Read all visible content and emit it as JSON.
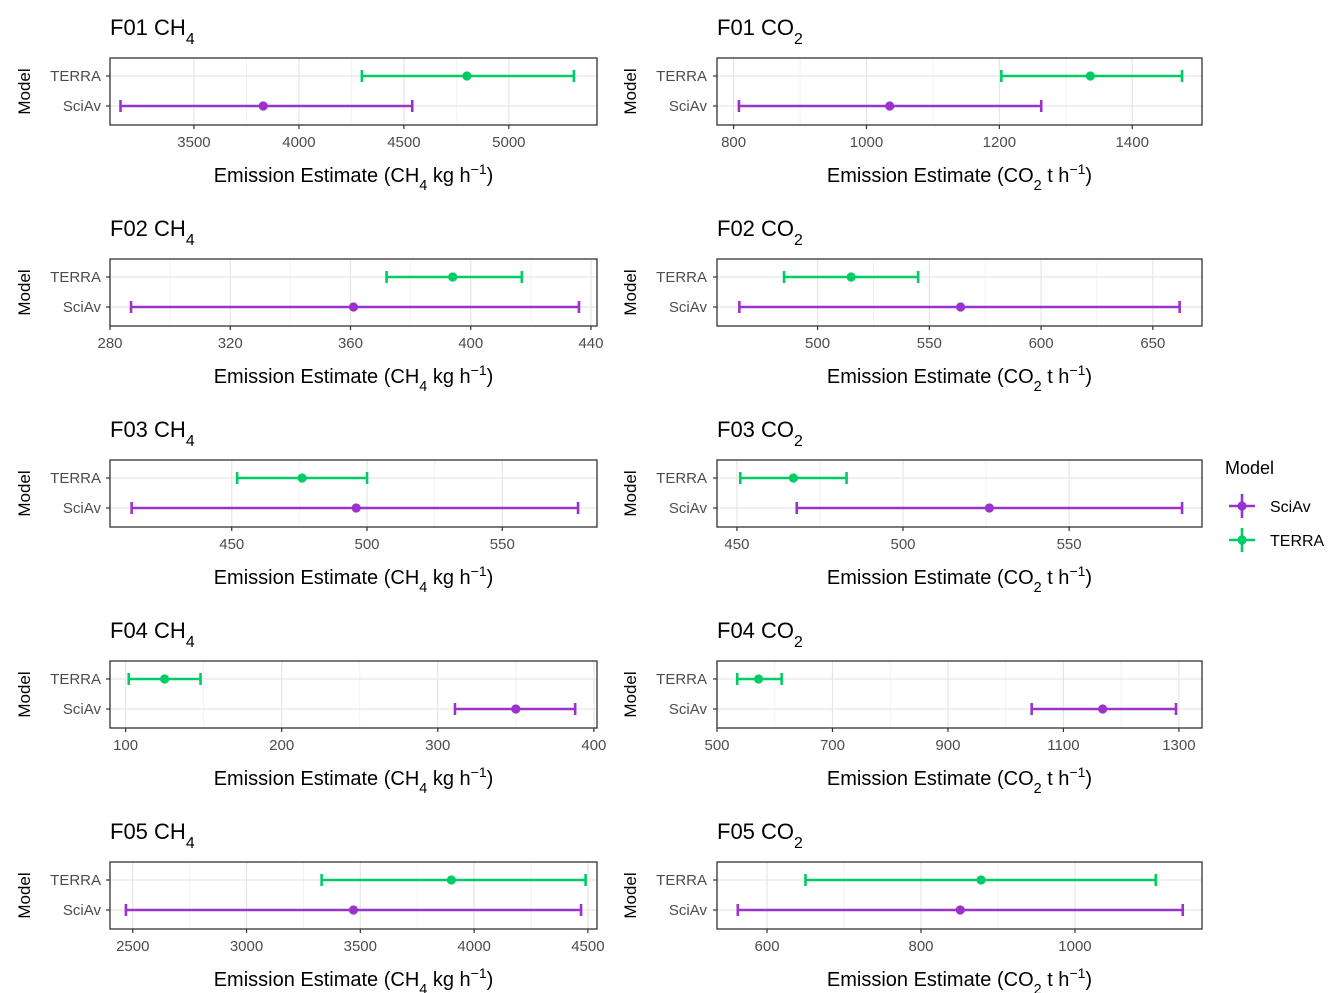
{
  "legend": {
    "title": "Model",
    "items": [
      {
        "label": "SciAv",
        "color": "#9933CC"
      },
      {
        "label": "TERRA",
        "color": "#00CC66"
      }
    ]
  },
  "chart_data": [
    {
      "type": "errorbar",
      "title": "F01 CH4",
      "gas": "CH4",
      "xlabel_unit": "kg h",
      "ylabel": "Model",
      "categories": [
        "TERRA",
        "SciAv"
      ],
      "xlim": [
        3100,
        5420
      ],
      "xticks": [
        3500,
        4000,
        4500,
        5000
      ],
      "series": [
        {
          "model": "TERRA",
          "estimate": 4800,
          "low": 4300,
          "high": 5310
        },
        {
          "model": "SciAv",
          "estimate": 3830,
          "low": 3150,
          "high": 4540
        }
      ]
    },
    {
      "type": "errorbar",
      "title": "F01 CO2",
      "gas": "CO2",
      "xlabel_unit": "t h",
      "ylabel": "Model",
      "categories": [
        "TERRA",
        "SciAv"
      ],
      "xlim": [
        775,
        1505
      ],
      "xticks": [
        800,
        1000,
        1200,
        1400
      ],
      "series": [
        {
          "model": "TERRA",
          "estimate": 1337,
          "low": 1203,
          "high": 1475
        },
        {
          "model": "SciAv",
          "estimate": 1035,
          "low": 808,
          "high": 1263
        }
      ]
    },
    {
      "type": "errorbar",
      "title": "F02 CH4",
      "gas": "CH4",
      "xlabel_unit": "kg h",
      "ylabel": "Model",
      "categories": [
        "TERRA",
        "SciAv"
      ],
      "xlim": [
        280,
        442
      ],
      "xticks": [
        280,
        320,
        360,
        400,
        440
      ],
      "series": [
        {
          "model": "TERRA",
          "estimate": 394,
          "low": 372,
          "high": 417
        },
        {
          "model": "SciAv",
          "estimate": 361,
          "low": 287,
          "high": 436
        }
      ]
    },
    {
      "type": "errorbar",
      "title": "F02 CO2",
      "gas": "CO2",
      "xlabel_unit": "t h",
      "ylabel": "Model",
      "categories": [
        "TERRA",
        "SciAv"
      ],
      "xlim": [
        455,
        672
      ],
      "xticks": [
        500,
        550,
        600,
        650
      ],
      "series": [
        {
          "model": "TERRA",
          "estimate": 515,
          "low": 485,
          "high": 545
        },
        {
          "model": "SciAv",
          "estimate": 564,
          "low": 465,
          "high": 662
        }
      ]
    },
    {
      "type": "errorbar",
      "title": "F03 CH4",
      "gas": "CH4",
      "xlabel_unit": "kg h",
      "ylabel": "Model",
      "categories": [
        "TERRA",
        "SciAv"
      ],
      "xlim": [
        405,
        585
      ],
      "xticks": [
        450,
        500,
        550
      ],
      "series": [
        {
          "model": "TERRA",
          "estimate": 476,
          "low": 452,
          "high": 500
        },
        {
          "model": "SciAv",
          "estimate": 496,
          "low": 413,
          "high": 578
        }
      ]
    },
    {
      "type": "errorbar",
      "title": "F03 CO2",
      "gas": "CO2",
      "xlabel_unit": "t h",
      "ylabel": "Model",
      "categories": [
        "TERRA",
        "SciAv"
      ],
      "xlim": [
        444,
        590
      ],
      "xticks": [
        450,
        500,
        550
      ],
      "series": [
        {
          "model": "TERRA",
          "estimate": 467,
          "low": 451,
          "high": 483
        },
        {
          "model": "SciAv",
          "estimate": 526,
          "low": 468,
          "high": 584
        }
      ]
    },
    {
      "type": "errorbar",
      "title": "F04 CH4",
      "gas": "CH4",
      "xlabel_unit": "kg h",
      "ylabel": "Model",
      "categories": [
        "TERRA",
        "SciAv"
      ],
      "xlim": [
        90,
        402
      ],
      "xticks": [
        100,
        200,
        300,
        400
      ],
      "series": [
        {
          "model": "TERRA",
          "estimate": 125,
          "low": 102,
          "high": 148
        },
        {
          "model": "SciAv",
          "estimate": 350,
          "low": 311,
          "high": 388
        }
      ]
    },
    {
      "type": "errorbar",
      "title": "F04 CO2",
      "gas": "CO2",
      "xlabel_unit": "t h",
      "ylabel": "Model",
      "categories": [
        "TERRA",
        "SciAv"
      ],
      "xlim": [
        500,
        1340
      ],
      "xticks": [
        500,
        700,
        900,
        1100,
        1300
      ],
      "series": [
        {
          "model": "TERRA",
          "estimate": 572,
          "low": 535,
          "high": 612
        },
        {
          "model": "SciAv",
          "estimate": 1168,
          "low": 1045,
          "high": 1295
        }
      ]
    },
    {
      "type": "errorbar",
      "title": "F05 CH4",
      "gas": "CH4",
      "xlabel_unit": "kg h",
      "ylabel": "Model",
      "categories": [
        "TERRA",
        "SciAv"
      ],
      "xlim": [
        2400,
        4540
      ],
      "xticks": [
        2500,
        3000,
        3500,
        4000,
        4500
      ],
      "series": [
        {
          "model": "TERRA",
          "estimate": 3900,
          "low": 3330,
          "high": 4490
        },
        {
          "model": "SciAv",
          "estimate": 3470,
          "low": 2470,
          "high": 4470
        }
      ]
    },
    {
      "type": "errorbar",
      "title": "F05 CO2",
      "gas": "CO2",
      "xlabel_unit": "t h",
      "ylabel": "Model",
      "categories": [
        "TERRA",
        "SciAv"
      ],
      "xlim": [
        535,
        1165
      ],
      "xticks": [
        600,
        800,
        1000
      ],
      "series": [
        {
          "model": "TERRA",
          "estimate": 878,
          "low": 650,
          "high": 1105
        },
        {
          "model": "SciAv",
          "estimate": 851,
          "low": 562,
          "high": 1140
        }
      ]
    }
  ]
}
